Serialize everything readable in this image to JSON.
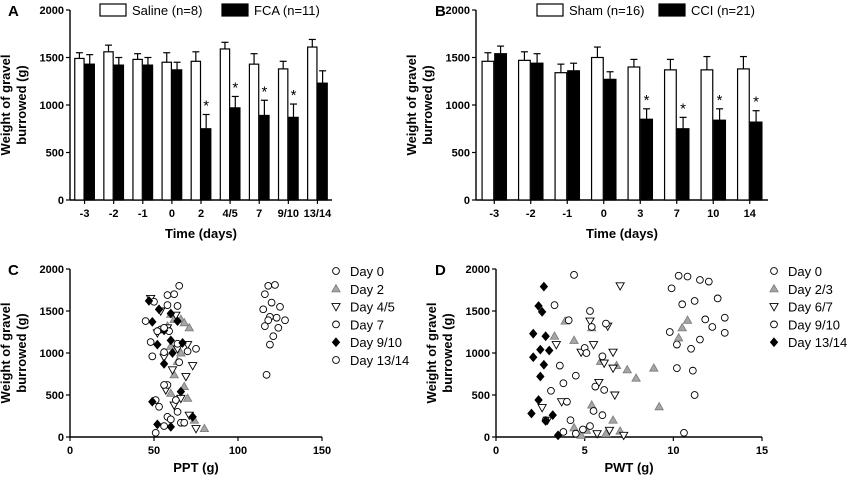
{
  "chart_data": [
    {
      "panel_label": "A",
      "type": "bar",
      "categories": [
        "-3",
        "-2",
        "-1",
        "0",
        "2",
        "4/5",
        "7",
        "9/10",
        "13/14"
      ],
      "series": [
        {
          "name": "Saline (n=8)",
          "color": "#ffffff",
          "values": [
            1490,
            1560,
            1480,
            1450,
            1460,
            1590,
            1430,
            1380,
            1610
          ],
          "errors": [
            60,
            70,
            60,
            100,
            100,
            70,
            110,
            80,
            80
          ]
        },
        {
          "name": "FCA (n=11)",
          "color": "#000000",
          "values": [
            1430,
            1420,
            1420,
            1370,
            750,
            970,
            890,
            870,
            1230
          ],
          "errors": [
            100,
            80,
            80,
            80,
            150,
            120,
            160,
            140,
            130
          ]
        }
      ],
      "significance": [
        "",
        "",
        "",
        "",
        "*",
        "*",
        "*",
        "*",
        ""
      ],
      "xlabel": "Time (days)",
      "ylabel_lines": [
        "Weight of gravel",
        "burrowed (g)"
      ],
      "ylim": [
        0,
        2000
      ],
      "yticks": [
        "0",
        "500",
        "1000",
        "1500",
        "2000"
      ]
    },
    {
      "panel_label": "B",
      "type": "bar",
      "categories": [
        "-3",
        "-2",
        "-1",
        "0",
        "3",
        "7",
        "10",
        "14"
      ],
      "series": [
        {
          "name": "Sham (n=16)",
          "color": "#ffffff",
          "values": [
            1460,
            1470,
            1340,
            1500,
            1400,
            1370,
            1370,
            1380
          ],
          "errors": [
            90,
            90,
            90,
            110,
            80,
            110,
            140,
            130
          ]
        },
        {
          "name": "CCI (n=21)",
          "color": "#000000",
          "values": [
            1540,
            1440,
            1360,
            1270,
            850,
            750,
            840,
            820
          ],
          "errors": [
            80,
            100,
            80,
            80,
            110,
            120,
            120,
            120
          ]
        }
      ],
      "significance": [
        "",
        "",
        "",
        "",
        "*",
        "*",
        "*",
        "*"
      ],
      "xlabel": "Time (days)",
      "ylabel_lines": [
        "Weight of gravel",
        "burrowed (g)"
      ],
      "ylim": [
        0,
        2000
      ],
      "yticks": [
        "0",
        "500",
        "1000",
        "1500",
        "2000"
      ]
    },
    {
      "panel_label": "C",
      "type": "scatter",
      "xlabel": "PPT (g)",
      "ylabel_lines": [
        "Weight of gravel",
        "burrowed (g)"
      ],
      "xlim": [
        0,
        150
      ],
      "ylim": [
        0,
        2000
      ],
      "xticks": [
        "0",
        "50",
        "100",
        "150"
      ],
      "yticks": [
        "0",
        "500",
        "1000",
        "1500",
        "2000"
      ],
      "series": [
        {
          "name": "Day 0",
          "marker": "circle",
          "points": [
            [
              118,
              1800
            ],
            [
              122,
              1810
            ],
            [
              116,
              1700
            ],
            [
              120,
              1600
            ],
            [
              115,
              1520
            ],
            [
              125,
              1550
            ],
            [
              119,
              1430
            ],
            [
              123,
              1420
            ],
            [
              118,
              1390
            ],
            [
              128,
              1390
            ],
            [
              116,
              1320
            ],
            [
              124,
              1300
            ],
            [
              121,
              1200
            ],
            [
              119,
              1100
            ],
            [
              117,
              740
            ]
          ]
        },
        {
          "name": "Day 2",
          "marker": "triangle",
          "points": [
            [
              60,
              1460
            ],
            [
              62,
              1400
            ],
            [
              66,
              1400
            ],
            [
              68,
              1360
            ],
            [
              58,
              1320
            ],
            [
              71,
              1300
            ],
            [
              60,
              1080
            ],
            [
              66,
              1000
            ],
            [
              64,
              900
            ],
            [
              62,
              740
            ],
            [
              68,
              600
            ],
            [
              60,
              520
            ],
            [
              70,
              460
            ],
            [
              74,
              200
            ],
            [
              80,
              100
            ]
          ]
        },
        {
          "name": "Day 4/5",
          "marker": "triangle-down",
          "points": [
            [
              48,
              1650
            ],
            [
              54,
              1500
            ],
            [
              63,
              1450
            ],
            [
              58,
              1300
            ],
            [
              52,
              1240
            ],
            [
              70,
              1100
            ],
            [
              64,
              1050
            ],
            [
              56,
              950
            ],
            [
              73,
              850
            ],
            [
              61,
              800
            ],
            [
              69,
              720
            ],
            [
              57,
              560
            ],
            [
              66,
              460
            ],
            [
              62,
              380
            ],
            [
              71,
              260
            ],
            [
              75,
              100
            ]
          ]
        },
        {
          "name": "Day 7",
          "marker": "circle",
          "points": [
            [
              50,
              1610
            ],
            [
              58,
              1570
            ],
            [
              64,
              1560
            ],
            [
              54,
              1280
            ],
            [
              59,
              1260
            ],
            [
              48,
              1130
            ],
            [
              64,
              1110
            ],
            [
              56,
              1010
            ],
            [
              49,
              960
            ],
            [
              58,
              620
            ],
            [
              51,
              440
            ],
            [
              63,
              440
            ],
            [
              58,
              240
            ],
            [
              66,
              170
            ],
            [
              51,
              50
            ]
          ]
        },
        {
          "name": "Day 9/10",
          "marker": "diamond",
          "points": [
            [
              47,
              1620
            ],
            [
              53,
              1520
            ],
            [
              60,
              1470
            ],
            [
              64,
              1380
            ],
            [
              49,
              1370
            ],
            [
              56,
              1270
            ],
            [
              60,
              1150
            ],
            [
              67,
              1120
            ],
            [
              52,
              1100
            ],
            [
              61,
              1000
            ],
            [
              56,
              870
            ],
            [
              66,
              540
            ],
            [
              49,
              420
            ],
            [
              73,
              240
            ],
            [
              52,
              150
            ],
            [
              60,
              120
            ]
          ]
        },
        {
          "name": "Day 13/14",
          "marker": "circle",
          "points": [
            [
              65,
              1800
            ],
            [
              58,
              1690
            ],
            [
              62,
              1700
            ],
            [
              45,
              1380
            ],
            [
              56,
              1300
            ],
            [
              52,
              1260
            ],
            [
              75,
              1050
            ],
            [
              70,
              1020
            ],
            [
              65,
              890
            ],
            [
              56,
              620
            ],
            [
              64,
              300
            ],
            [
              53,
              360
            ],
            [
              60,
              210
            ],
            [
              68,
              170
            ],
            [
              56,
              130
            ]
          ]
        }
      ]
    },
    {
      "panel_label": "D",
      "type": "scatter",
      "xlabel": "PWT (g)",
      "ylabel_lines": [
        "Weight of gravel",
        "burrowed (g)"
      ],
      "xlim": [
        0,
        15
      ],
      "ylim": [
        0,
        2000
      ],
      "xticks": [
        "0",
        "5",
        "10",
        "15"
      ],
      "yticks": [
        "0",
        "500",
        "1000",
        "1500",
        "2000"
      ],
      "series": [
        {
          "name": "Day 0",
          "marker": "circle",
          "points": [
            [
              10.3,
              1920
            ],
            [
              10.8,
              1910
            ],
            [
              11.5,
              1870
            ],
            [
              12.0,
              1850
            ],
            [
              9.9,
              1770
            ],
            [
              12.5,
              1650
            ],
            [
              11.2,
              1620
            ],
            [
              10.5,
              1580
            ],
            [
              12.9,
              1420
            ],
            [
              11.8,
              1400
            ],
            [
              12.2,
              1310
            ],
            [
              9.8,
              1250
            ],
            [
              12.9,
              1240
            ],
            [
              11.5,
              1160
            ],
            [
              10.2,
              1100
            ],
            [
              11.0,
              1050
            ],
            [
              10.2,
              820
            ],
            [
              11.1,
              790
            ],
            [
              11.2,
              500
            ],
            [
              10.6,
              50
            ]
          ]
        },
        {
          "name": "Day 2/3",
          "marker": "triangle",
          "points": [
            [
              3.3,
              1200
            ],
            [
              3.9,
              1380
            ],
            [
              5.4,
              1300
            ],
            [
              4.4,
              1150
            ],
            [
              5.9,
              900
            ],
            [
              6.8,
              850
            ],
            [
              7.4,
              800
            ],
            [
              7.9,
              700
            ],
            [
              8.9,
              820
            ],
            [
              10.3,
              1180
            ],
            [
              10.8,
              1390
            ],
            [
              10.5,
              1300
            ],
            [
              9.2,
              360
            ],
            [
              5.4,
              380
            ],
            [
              6.6,
              200
            ],
            [
              4.4,
              110
            ],
            [
              5.1,
              80
            ],
            [
              6.2,
              40
            ],
            [
              7.0,
              70
            ],
            [
              4.8,
              20
            ]
          ]
        },
        {
          "name": "Day 6/7",
          "marker": "triangle-down",
          "points": [
            [
              7.0,
              1800
            ],
            [
              6.3,
              1320
            ],
            [
              5.3,
              1380
            ],
            [
              5.5,
              1100
            ],
            [
              4.8,
              1010
            ],
            [
              6.6,
              1010
            ],
            [
              6.1,
              880
            ],
            [
              6.6,
              820
            ],
            [
              5.8,
              650
            ],
            [
              6.7,
              500
            ],
            [
              3.4,
              1100
            ],
            [
              2.6,
              350
            ],
            [
              3.7,
              420
            ],
            [
              2.9,
              200
            ],
            [
              5.7,
              40
            ],
            [
              6.4,
              80
            ],
            [
              7.2,
              20
            ]
          ]
        },
        {
          "name": "Day 9/10",
          "marker": "circle",
          "points": [
            [
              4.4,
              1930
            ],
            [
              3.3,
              1570
            ],
            [
              4.1,
              1390
            ],
            [
              5.3,
              1500
            ],
            [
              6.2,
              1350
            ],
            [
              5.4,
              1310
            ],
            [
              5.0,
              1060
            ],
            [
              3.6,
              850
            ],
            [
              5.1,
              1000
            ],
            [
              6.0,
              960
            ],
            [
              5.6,
              600
            ],
            [
              6.1,
              560
            ],
            [
              4.5,
              730
            ],
            [
              3.8,
              640
            ],
            [
              3.1,
              550
            ],
            [
              4.0,
              420
            ],
            [
              5.5,
              310
            ],
            [
              2.8,
              200
            ],
            [
              4.2,
              200
            ],
            [
              6.0,
              260
            ],
            [
              4.9,
              90
            ],
            [
              4.5,
              40
            ],
            [
              3.8,
              60
            ],
            [
              5.3,
              130
            ]
          ]
        },
        {
          "name": "Day 13/14",
          "marker": "diamond",
          "points": [
            [
              2.7,
              1790
            ],
            [
              2.4,
              1560
            ],
            [
              2.6,
              1490
            ],
            [
              2.1,
              1230
            ],
            [
              2.8,
              1200
            ],
            [
              3.0,
              1030
            ],
            [
              2.5,
              1040
            ],
            [
              2.1,
              950
            ],
            [
              2.7,
              860
            ],
            [
              2.5,
              720
            ],
            [
              2.4,
              440
            ],
            [
              2.0,
              280
            ],
            [
              3.2,
              260
            ],
            [
              2.8,
              190
            ],
            [
              3.5,
              20
            ]
          ]
        }
      ]
    }
  ]
}
